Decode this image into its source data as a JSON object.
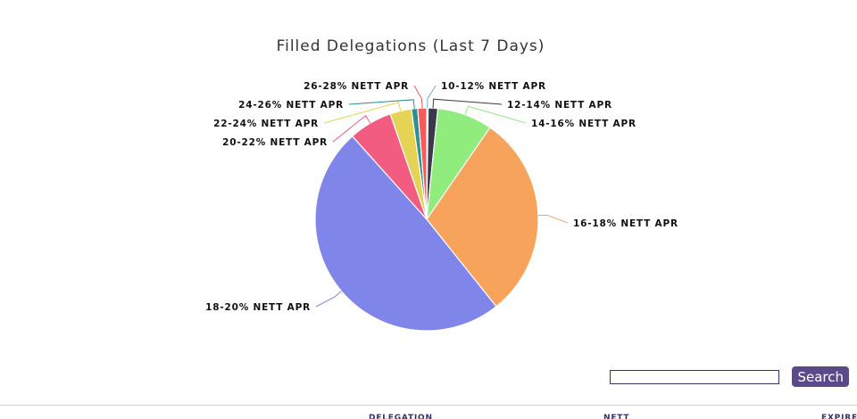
{
  "chart_data": {
    "type": "pie",
    "title": "Filled Delegations (Last 7 Days)",
    "slices": [
      {
        "label": "10-12% NETT APR",
        "value": 0.2,
        "color": "#6baed6"
      },
      {
        "label": "12-14% NETT APR",
        "value": 1.4,
        "color": "#3a3a4a"
      },
      {
        "label": "14-16% NETT APR",
        "value": 8.0,
        "color": "#90ed7d"
      },
      {
        "label": "16-18% NETT APR",
        "value": 29.7,
        "color": "#f7a35c"
      },
      {
        "label": "18-20% NETT APR",
        "value": 49.1,
        "color": "#8085e9"
      },
      {
        "label": "20-22% NETT APR",
        "value": 6.3,
        "color": "#f15c80"
      },
      {
        "label": "22-24% NETT APR",
        "value": 3.1,
        "color": "#e4d354"
      },
      {
        "label": "24-26% NETT APR",
        "value": 0.9,
        "color": "#2b908f"
      },
      {
        "label": "26-28% NETT APR",
        "value": 1.3,
        "color": "#f45b5b"
      }
    ]
  },
  "search": {
    "placeholder": "",
    "value": "",
    "button_label": "Search"
  },
  "table": {
    "columns": [
      "DELEGATION",
      "NETT",
      "EXPIRES"
    ]
  }
}
